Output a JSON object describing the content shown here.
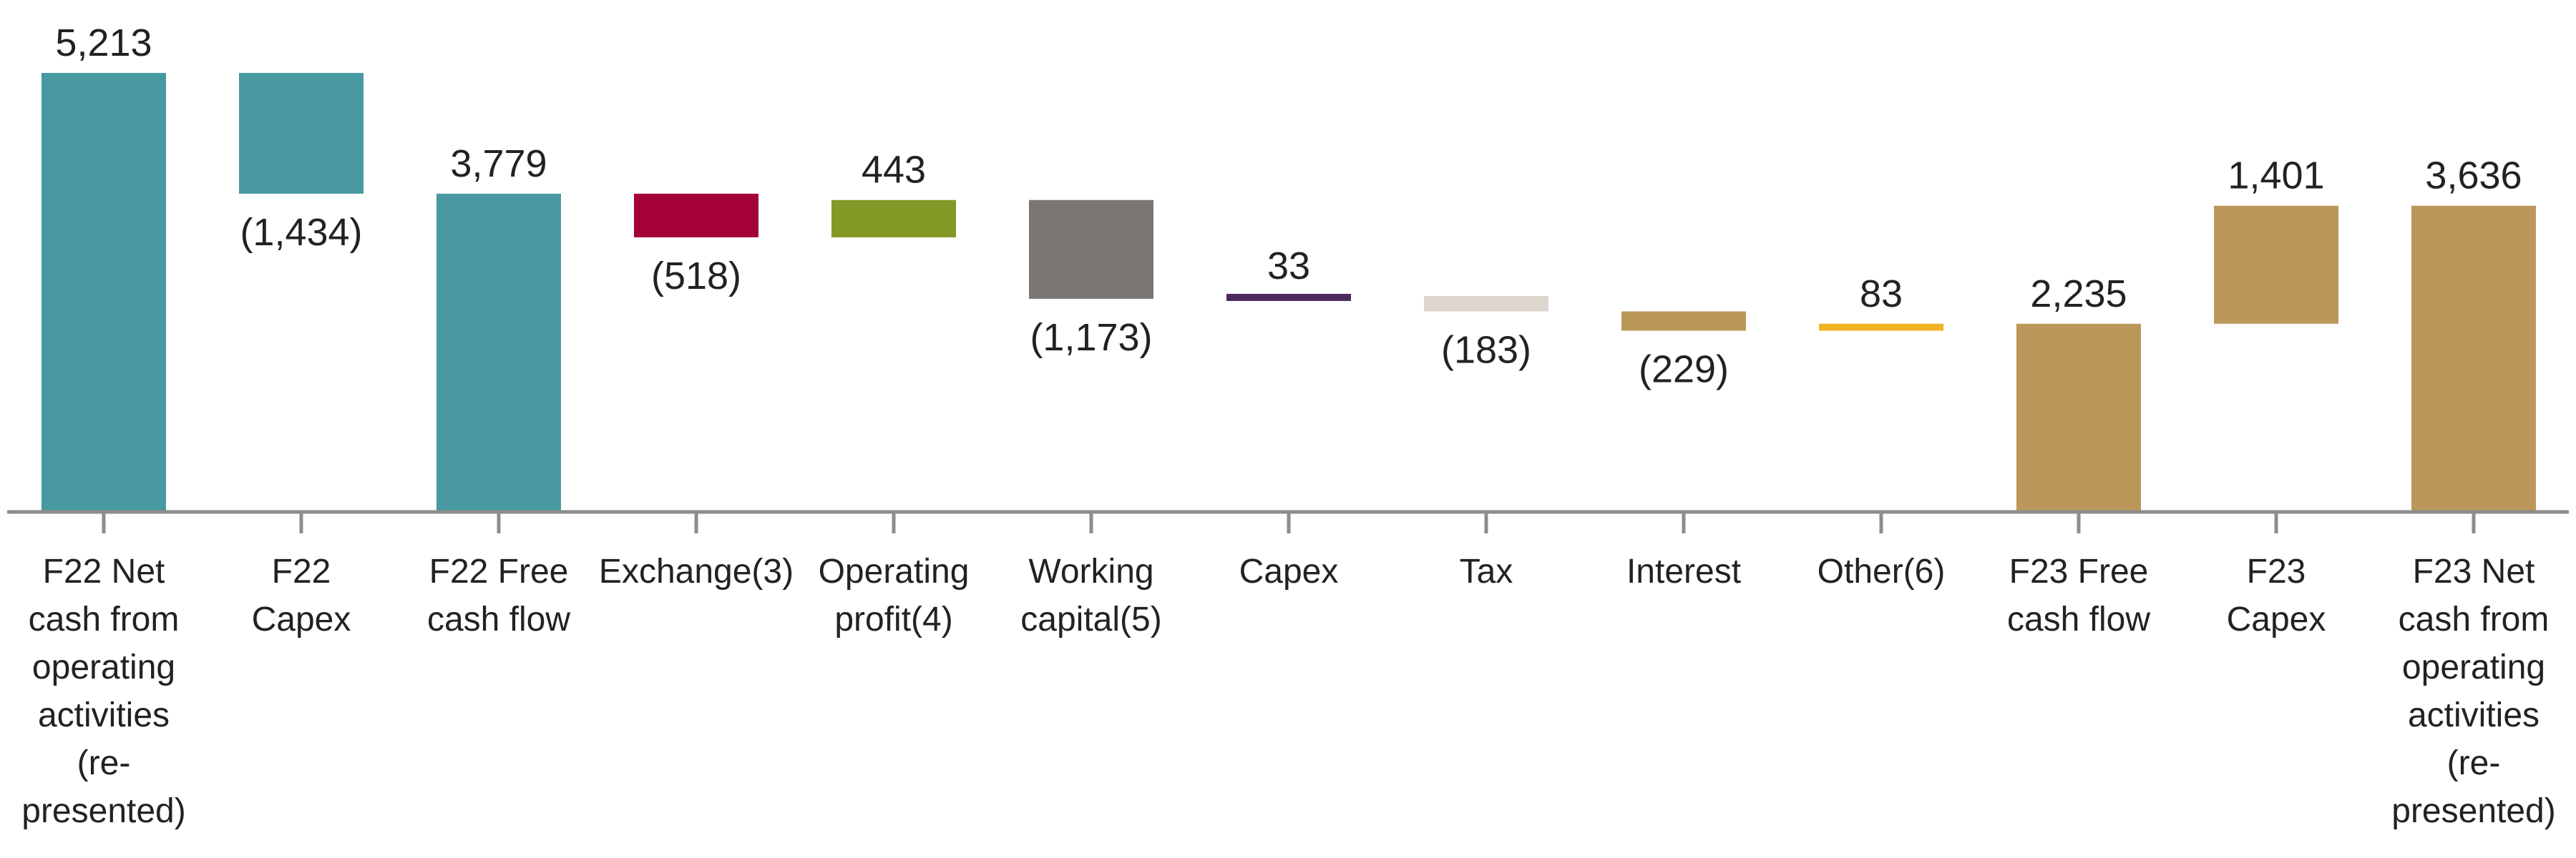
{
  "chart_data": {
    "type": "bar",
    "subtype": "waterfall",
    "title": "",
    "xlabel": "",
    "ylabel": "",
    "grid": false,
    "legend": "none",
    "ylim": [
      0,
      5400
    ],
    "axis_color": "#8c8c8c",
    "steps": [
      {
        "category": "F22 Net cash from operating activities (re-presented)",
        "lines": [
          "F22 Net",
          "cash from",
          "operating",
          "activities",
          "(re-",
          "presented)"
        ],
        "value": 5213,
        "kind": "total",
        "label": "5,213",
        "color": "#4899a1"
      },
      {
        "category": "F22 Capex",
        "lines": [
          "F22",
          "Capex"
        ],
        "value": -1434,
        "kind": "delta",
        "label": "(1,434)",
        "color": "#4899a1"
      },
      {
        "category": "F22 Free cash flow",
        "lines": [
          "F22 Free",
          "cash flow"
        ],
        "value": 3779,
        "kind": "total",
        "label": "3,779",
        "color": "#4899a1"
      },
      {
        "category": "Exchange(3)",
        "lines": [
          "Exchange(3)"
        ],
        "value": -518,
        "kind": "delta",
        "label": "(518)",
        "color": "#a4003a"
      },
      {
        "category": "Operating profit(4)",
        "lines": [
          "Operating",
          "profit(4)"
        ],
        "value": 443,
        "kind": "delta",
        "label": "443",
        "color": "#839925"
      },
      {
        "category": "Working capital(5)",
        "lines": [
          "Working",
          "capital(5)"
        ],
        "value": -1173,
        "kind": "delta",
        "label": "(1,173)",
        "color": "#7a7571"
      },
      {
        "category": "Capex",
        "lines": [
          "Capex"
        ],
        "value": 33,
        "kind": "delta",
        "label": "33",
        "color": "#4b2a5e"
      },
      {
        "category": "Tax",
        "lines": [
          "Tax"
        ],
        "value": -183,
        "kind": "delta",
        "label": "(183)",
        "color": "#ddd6cf"
      },
      {
        "category": "Interest",
        "lines": [
          "Interest"
        ],
        "value": -229,
        "kind": "delta",
        "label": "(229)",
        "color": "#bb975a"
      },
      {
        "category": "Other(6)",
        "lines": [
          "Other(6)"
        ],
        "value": 83,
        "kind": "delta",
        "label": "83",
        "color": "#f2b224"
      },
      {
        "category": "F23 Free cash flow",
        "lines": [
          "F23 Free",
          "cash flow"
        ],
        "value": 2235,
        "kind": "total",
        "label": "2,235",
        "color": "#bb975a"
      },
      {
        "category": "F23 Capex",
        "lines": [
          "F23",
          "Capex"
        ],
        "value": 1401,
        "kind": "delta",
        "label": "1,401",
        "color": "#bb975a"
      },
      {
        "category": "F23 Net cash from operating activities (re-presented)",
        "lines": [
          "F23 Net",
          "cash from",
          "operating",
          "activities",
          "(re-",
          "presented)"
        ],
        "value": 3636,
        "kind": "total",
        "label": "3,636",
        "color": "#bb975a"
      }
    ]
  }
}
